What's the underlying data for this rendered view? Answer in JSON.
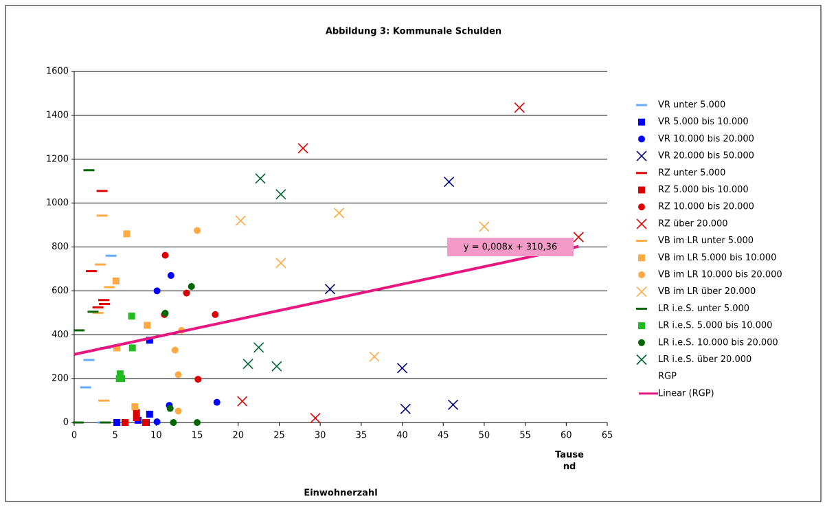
{
  "chart_data": {
    "type": "scatter",
    "title": "Abbildung 3: Kommunale Schulden",
    "x_label": "Einwohnerzahl",
    "x_unit": "Tausend",
    "xlim": [
      0,
      65
    ],
    "xticks": [
      0,
      5,
      10,
      15,
      20,
      25,
      30,
      35,
      40,
      45,
      50,
      55,
      60,
      65
    ],
    "ylim": [
      0,
      1600
    ],
    "yticks": [
      0,
      200,
      400,
      600,
      800,
      1000,
      1200,
      1400,
      1600
    ],
    "grid": true,
    "legend": "right",
    "series": [
      {
        "name": "VR  unter 5.000",
        "color": "#66aaff",
        "marker": "dash",
        "x": [
          4.5,
          1.8,
          1.4,
          3.5,
          3.8
        ],
        "values": [
          760,
          285,
          160,
          0,
          340
        ]
      },
      {
        "name": "VR  5.000 bis 10.000",
        "color": "#0000ff",
        "marker": "square",
        "x": [
          5.2,
          9.2,
          9.2,
          8.8,
          7.8
        ],
        "values": [
          0,
          375,
          38,
          0,
          10
        ]
      },
      {
        "name": "VR  10.000 bis 20.000",
        "color": "#0000ff",
        "marker": "circle",
        "x": [
          10.1,
          11.8,
          11.6,
          17.4,
          10.1
        ],
        "values": [
          600,
          670,
          78,
          92,
          3
        ]
      },
      {
        "name": "VR  20.000 bis 50.000",
        "color": "#000080",
        "marker": "x",
        "x": [
          31.2,
          45.7,
          40,
          40.4,
          46.2
        ],
        "values": [
          608,
          1097,
          248,
          62,
          81
        ]
      },
      {
        "name": "RZ  unter 5.000",
        "color": "#dd0000",
        "marker": "dash",
        "x": [
          3.4,
          2.1,
          3.6,
          3.7,
          2.9
        ],
        "values": [
          1055,
          690,
          558,
          540,
          525
        ]
      },
      {
        "name": "RZ  5.000 bis 10.000",
        "color": "#dd0000",
        "marker": "square",
        "x": [
          6.2,
          7.6,
          7.6,
          8.7
        ],
        "values": [
          0,
          45,
          22,
          0
        ]
      },
      {
        "name": "RZ  10.000 bis 20.000",
        "color": "#dd0000",
        "marker": "circle",
        "x": [
          11.1,
          11,
          13.7,
          17.2,
          15.1
        ],
        "values": [
          762,
          492,
          590,
          492,
          197
        ]
      },
      {
        "name": "RZ  über 20.000",
        "color": "#dd0000",
        "marker": "x",
        "x": [
          27.9,
          54.3,
          61.5,
          20.5,
          29.4
        ],
        "values": [
          1250,
          1435,
          845,
          97,
          20
        ]
      },
      {
        "name": "VB im LR  unter 5.000",
        "color": "#ffaa44",
        "marker": "dash",
        "x": [
          3.4,
          3.2,
          4.3,
          2.9,
          3.6
        ],
        "values": [
          943,
          720,
          617,
          500,
          100
        ]
      },
      {
        "name": "VB im LR  5.000 bis 10.000",
        "color": "#ffaa44",
        "marker": "square",
        "x": [
          6.4,
          5.1,
          8.9,
          5.2,
          7.4
        ],
        "values": [
          860,
          645,
          443,
          340,
          72
        ]
      },
      {
        "name": "VB im LR  10.000 bis 20.000",
        "color": "#ffaa44",
        "marker": "circle",
        "x": [
          15,
          13.1,
          12.3,
          12.7,
          12.7
        ],
        "values": [
          875,
          420,
          330,
          218,
          52
        ]
      },
      {
        "name": "VB im LR  über 20.000",
        "color": "#ffaa44",
        "marker": "x",
        "x": [
          20.3,
          32.3,
          25.2,
          50,
          36.6
        ],
        "values": [
          920,
          955,
          727,
          893,
          300
        ]
      },
      {
        "name": "LR i.e.S.  unter 5.000",
        "color": "#006600",
        "marker": "dash",
        "x": [
          1.8,
          2.3,
          0.6,
          0.5,
          3.8
        ],
        "values": [
          1150,
          505,
          420,
          0,
          0
        ]
      },
      {
        "name": "LR i.e.S.  5.000 bis 10.000",
        "color": "#22bb22",
        "marker": "square",
        "x": [
          7,
          7.1,
          5.6,
          5.5,
          5.8
        ],
        "values": [
          485,
          340,
          222,
          200,
          200
        ]
      },
      {
        "name": "LR i.e.S.  10.000 bis 20.000",
        "color": "#006600",
        "marker": "circle",
        "x": [
          14.3,
          11.1,
          11.7,
          12.1,
          15
        ],
        "values": [
          620,
          498,
          64,
          0,
          0
        ]
      },
      {
        "name": "LR i.e.S.  über 20.000",
        "color": "#006633",
        "marker": "x",
        "x": [
          22.7,
          25.2,
          22.5,
          21.2,
          24.7
        ],
        "values": [
          1112,
          1040,
          342,
          267,
          256
        ]
      },
      {
        "name": "RGP",
        "color": "#000000",
        "marker": "none",
        "x": [],
        "values": []
      },
      {
        "name": "Linear (RGP)",
        "color": "#e8177f",
        "marker": "line",
        "x": [
          0,
          61.5
        ],
        "values": [
          310.36,
          802.4
        ]
      }
    ],
    "annotation": "y = 0,008x + 310,36"
  }
}
